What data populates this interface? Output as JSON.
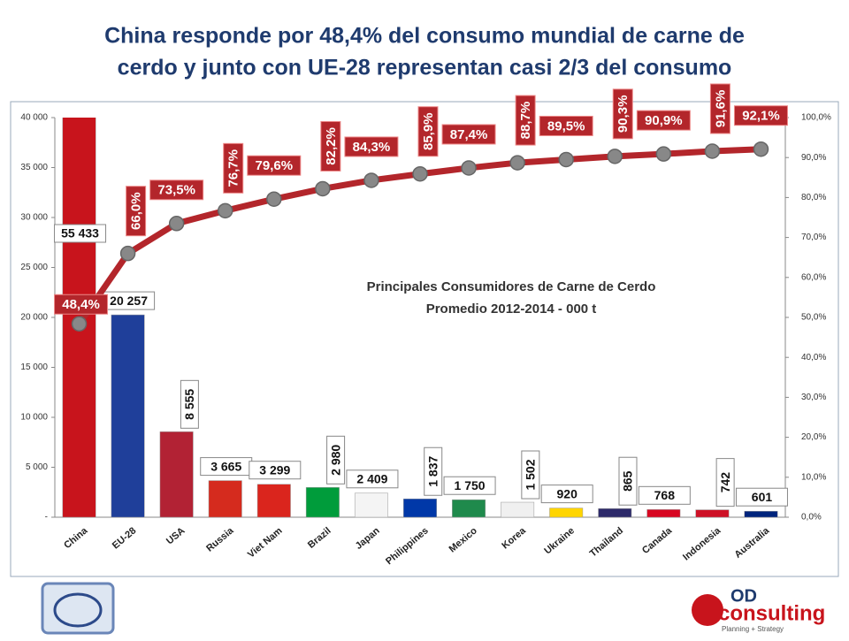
{
  "chart_data": {
    "type": "pareto",
    "title": [
      "China responde por 48,4% del consumo mundial de carne de",
      "cerdo y junto con UE-28 representan casi 2/3 del consumo"
    ],
    "subtitle": [
      "Principales Consumidores de Carne de Cerdo",
      "Promedio 2012-2014 - 000 t"
    ],
    "categories": [
      "China",
      "EU-28",
      "USA",
      "Russia",
      "Viet Nam",
      "Brazil",
      "Japan",
      "Philippines",
      "Mexico",
      "Korea",
      "Ukraine",
      "Thailand",
      "Canada",
      "Indonesia",
      "Australia"
    ],
    "series": [
      {
        "values": [
          55433,
          20257,
          8555,
          3665,
          3299,
          2980,
          2409,
          1837,
          1750,
          1502,
          920,
          865,
          768,
          742,
          601
        ],
        "value_labels": [
          "55 433",
          "20 257",
          "8 555",
          "3 665",
          "3 299",
          "2 980",
          "2 409",
          "1 837",
          "1 750",
          "1 502",
          "920",
          "865",
          "768",
          "742",
          "601"
        ],
        "colors": [
          "#c8141c",
          "#1f3f9a",
          "#b22234",
          "#d52b1e",
          "#da251d",
          "#009c3b",
          "#f4f4f4",
          "#0038a8",
          "#1f8a4c",
          "#f0f0f0",
          "#ffd500",
          "#2d2a6a",
          "#d80621",
          "#ce1126",
          "#00247d"
        ]
      },
      {
        "axis": "y2",
        "color": "#b3262b",
        "values": [
          48.4,
          66.0,
          73.5,
          76.7,
          79.6,
          82.2,
          84.3,
          85.9,
          87.4,
          88.7,
          89.5,
          90.3,
          90.9,
          91.6,
          92.1
        ],
        "value_labels": [
          "48,4%",
          "66,0%",
          "73,5%",
          "76,7%",
          "79,6%",
          "82,2%",
          "84,3%",
          "85,9%",
          "87,4%",
          "88,7%",
          "89,5%",
          "90,3%",
          "90,9%",
          "91,6%",
          "92,1%"
        ]
      }
    ],
    "ylim": [
      0,
      40000
    ],
    "yticks": [
      {
        "value": 0,
        "label": "-"
      },
      {
        "value": 5000,
        "label": "5 000"
      },
      {
        "value": 10000,
        "label": "10 000"
      },
      {
        "value": 15000,
        "label": "15 000"
      },
      {
        "value": 20000,
        "label": "20 000"
      },
      {
        "value": 25000,
        "label": "25 000"
      },
      {
        "value": 30000,
        "label": "30 000"
      },
      {
        "value": 35000,
        "label": "35 000"
      },
      {
        "value": 40000,
        "label": "40 000"
      }
    ],
    "y2lim": [
      0,
      100
    ],
    "y2ticks": [
      {
        "value": 0,
        "label": "0,0%"
      },
      {
        "value": 10,
        "label": "10,0%"
      },
      {
        "value": 20,
        "label": "20,0%"
      },
      {
        "value": 30,
        "label": "30,0%"
      },
      {
        "value": 40,
        "label": "40,0%"
      },
      {
        "value": 50,
        "label": "50,0%"
      },
      {
        "value": 60,
        "label": "60,0%"
      },
      {
        "value": 70,
        "label": "70,0%"
      },
      {
        "value": 80,
        "label": "80,0%"
      },
      {
        "value": 90,
        "label": "90,0%"
      },
      {
        "value": 100,
        "label": "100,0%"
      }
    ]
  },
  "logo": {
    "brand": "OD",
    "name": "consulting",
    "tagline": "Planning + Strategy"
  }
}
